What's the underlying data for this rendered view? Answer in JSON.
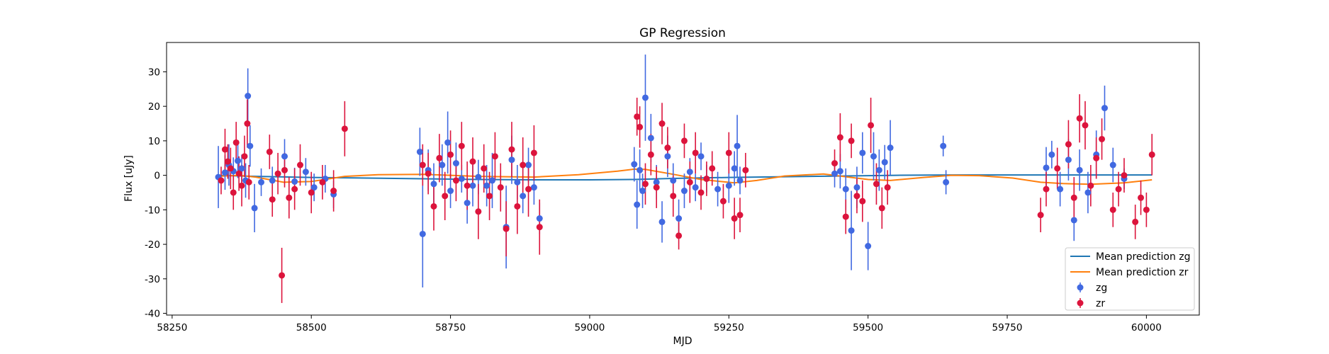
{
  "chart_data": {
    "type": "scatter",
    "title": "GP Regression",
    "xlabel": "MJD",
    "ylabel": "Flux [uJy]",
    "xlim": [
      58240,
      60095
    ],
    "ylim": [
      -40.5,
      38.5
    ],
    "xticks": [
      58250,
      58500,
      58750,
      59000,
      59250,
      59500,
      59750,
      60000
    ],
    "yticks": [
      -40,
      -30,
      -20,
      -10,
      0,
      10,
      20,
      30
    ],
    "grid": false,
    "legend": "lower-right",
    "legend_entries": [
      "Mean prediction zg",
      "Mean prediction zr",
      "zg",
      "zr"
    ],
    "colors": {
      "zg_points": "#4169e1",
      "zr_points": "#dc143c",
      "zg_line": "#1f77b4",
      "zr_line": "#ff7f0e"
    },
    "series": [
      {
        "name": "Mean prediction zg",
        "kind": "line",
        "x": [
          58330,
          58400,
          58500,
          58600,
          58700,
          58800,
          58900,
          59000,
          59080,
          59150,
          59250,
          59350,
          59450,
          59550,
          59650,
          59750,
          59850,
          59950,
          60010
        ],
        "y": [
          0.0,
          -0.3,
          -0.6,
          -0.8,
          -1.0,
          -1.2,
          -1.3,
          -1.3,
          -1.2,
          -0.9,
          -0.6,
          -0.4,
          -0.2,
          0.0,
          0.1,
          0.1,
          0.1,
          0.1,
          0.1
        ]
      },
      {
        "name": "Mean prediction zr",
        "kind": "line",
        "x": [
          58330,
          58370,
          58400,
          58450,
          58500,
          58560,
          58620,
          58700,
          58800,
          58900,
          58980,
          59050,
          59080,
          59100,
          59150,
          59200,
          59260,
          59300,
          59350,
          59420,
          59470,
          59500,
          59540,
          59600,
          59650,
          59700,
          59760,
          59810,
          59850,
          59900,
          59960,
          60010
        ],
        "y": [
          -0.3,
          0.0,
          -0.5,
          -2.0,
          -1.8,
          -0.3,
          0.2,
          0.3,
          -0.3,
          -0.5,
          0.2,
          1.2,
          1.8,
          1.7,
          0.3,
          -1.2,
          -2.2,
          -1.5,
          -0.2,
          0.4,
          -0.6,
          -1.2,
          -1.5,
          -0.6,
          0.0,
          -0.1,
          -0.8,
          -2.0,
          -2.4,
          -2.6,
          -2.2,
          -1.3
        ]
      },
      {
        "name": "zg",
        "kind": "errorbar",
        "x": [
          58333,
          58345,
          58352,
          58360,
          58368,
          58375,
          58382,
          58386,
          58390,
          58398,
          58410,
          58430,
          58452,
          58470,
          58490,
          58505,
          58525,
          58540,
          58695,
          58700,
          58710,
          58720,
          58735,
          58745,
          58750,
          58760,
          58770,
          58780,
          58790,
          58800,
          58815,
          58825,
          58850,
          58860,
          58870,
          58880,
          58890,
          58900,
          58910,
          59080,
          59085,
          59090,
          59095,
          59100,
          59110,
          59120,
          59130,
          59140,
          59150,
          59160,
          59170,
          59180,
          59190,
          59200,
          59210,
          59230,
          59250,
          59260,
          59265,
          59270,
          59440,
          59450,
          59460,
          59470,
          59480,
          59490,
          59500,
          59510,
          59520,
          59530,
          59540,
          59635,
          59640,
          59820,
          59830,
          59845,
          59860,
          59870,
          59880,
          59895,
          59910,
          59925,
          59940,
          59960
        ],
        "y": [
          -0.5,
          0.8,
          3.0,
          1.2,
          4.2,
          2.0,
          -1.5,
          23.0,
          8.5,
          -9.5,
          -2.0,
          -1.5,
          5.5,
          -1.8,
          1.0,
          -3.5,
          -1.0,
          -5.5,
          6.8,
          -17.0,
          1.5,
          -2.5,
          3.0,
          9.5,
          -4.5,
          3.5,
          -1.0,
          -8.0,
          -3.0,
          -0.5,
          -3.0,
          -1.5,
          -15.0,
          4.5,
          -2.0,
          -6.0,
          3.0,
          -3.5,
          -12.5,
          3.2,
          -8.5,
          1.5,
          -4.5,
          22.5,
          10.8,
          -2.0,
          -13.5,
          5.5,
          -1.5,
          -12.5,
          -4.5,
          1.0,
          -3.5,
          5.5,
          -1.0,
          -4.0,
          -3.0,
          2.0,
          8.5,
          -1.5,
          0.5,
          1.2,
          -4.0,
          -16.0,
          -3.5,
          6.5,
          -20.5,
          5.5,
          1.5,
          3.8,
          8.0,
          8.5,
          -2.0,
          2.2,
          6.0,
          -4.0,
          4.5,
          -13.0,
          1.5,
          -5.0,
          6.0,
          19.5,
          3.0,
          -1.0
        ],
        "err": [
          9.0,
          5.0,
          6.0,
          4.0,
          5.0,
          4.0,
          5.0,
          8.0,
          6.0,
          7.0,
          4.0,
          4.0,
          5.0,
          4.0,
          4.0,
          4.0,
          4.0,
          4.0,
          7.0,
          15.5,
          6.0,
          6.0,
          6.0,
          9.0,
          5.0,
          6.0,
          4.0,
          6.0,
          6.0,
          5.0,
          6.0,
          8.0,
          12.0,
          7.0,
          5.0,
          5.0,
          5.0,
          5.0,
          4.5,
          5.0,
          7.0,
          6.0,
          5.0,
          12.5,
          7.0,
          5.0,
          6.0,
          6.0,
          5.0,
          5.5,
          5.0,
          4.0,
          4.0,
          4.0,
          4.0,
          5.0,
          5.0,
          5.0,
          9.0,
          4.0,
          4.0,
          5.0,
          6.0,
          11.5,
          6.0,
          6.0,
          7.0,
          7.0,
          6.0,
          5.0,
          8.0,
          3.0,
          3.5,
          6.0,
          4.0,
          5.0,
          6.0,
          6.0,
          6.0,
          6.0,
          7.0,
          6.5,
          5.0,
          3.0
        ]
      },
      {
        "name": "zr",
        "kind": "errorbar",
        "x": [
          58338,
          58345,
          58350,
          58355,
          58360,
          58365,
          58370,
          58375,
          58380,
          58385,
          58388,
          58425,
          58430,
          58440,
          58447,
          58452,
          58460,
          58470,
          58480,
          58500,
          58520,
          58540,
          58560,
          58700,
          58710,
          58720,
          58730,
          58740,
          58750,
          58760,
          58770,
          58780,
          58790,
          58800,
          58810,
          58820,
          58830,
          58840,
          58850,
          58860,
          58870,
          58880,
          58890,
          58900,
          58910,
          59085,
          59090,
          59100,
          59110,
          59120,
          59130,
          59140,
          59150,
          59160,
          59170,
          59180,
          59190,
          59200,
          59210,
          59220,
          59240,
          59250,
          59260,
          59270,
          59280,
          59440,
          59450,
          59460,
          59470,
          59480,
          59490,
          59505,
          59515,
          59525,
          59535,
          59810,
          59820,
          59840,
          59860,
          59870,
          59880,
          59890,
          59900,
          59910,
          59920,
          59940,
          59950,
          59960,
          59980,
          59990,
          60000,
          60010
        ],
        "y": [
          -1.5,
          7.5,
          4.0,
          2.0,
          -5.0,
          9.5,
          0.5,
          -3.0,
          5.5,
          15.0,
          -2.0,
          6.8,
          -7.0,
          0.5,
          -29.0,
          1.5,
          -6.5,
          -4.0,
          3.0,
          -5.0,
          -2.0,
          -4.5,
          13.5,
          3.0,
          0.5,
          -9.0,
          5.0,
          -6.0,
          6.0,
          -1.5,
          8.5,
          -3.0,
          4.0,
          -10.5,
          2.0,
          -6.0,
          5.5,
          -3.5,
          -15.5,
          7.5,
          -9.0,
          3.0,
          -4.0,
          6.5,
          -15.0,
          17.0,
          14.0,
          -2.5,
          6.0,
          -3.5,
          15.0,
          8.0,
          -6.0,
          -17.5,
          10.0,
          -2.0,
          6.5,
          -5.0,
          -1.0,
          2.0,
          -7.5,
          6.5,
          -12.5,
          -11.5,
          1.5,
          3.5,
          11.0,
          -12.0,
          10.0,
          -6.0,
          -7.5,
          14.5,
          -2.5,
          -9.5,
          -3.5,
          -11.5,
          -4.0,
          2.0,
          9.0,
          -6.5,
          16.5,
          14.5,
          -3.0,
          5.0,
          10.5,
          -10.0,
          -4.0,
          0.0,
          -13.5,
          -6.5,
          -10.0,
          6.0
        ],
        "err": [
          4.0,
          6.0,
          5.0,
          6.0,
          5.0,
          6.0,
          5.0,
          6.0,
          6.0,
          7.0,
          5.0,
          5.0,
          5.0,
          6.0,
          8.0,
          5.0,
          6.0,
          6.0,
          6.0,
          6.0,
          5.0,
          6.0,
          8.0,
          6.0,
          6.0,
          7.0,
          7.0,
          7.0,
          7.0,
          6.0,
          7.0,
          7.0,
          7.0,
          8.0,
          7.0,
          7.0,
          7.0,
          7.0,
          8.0,
          8.0,
          8.0,
          8.0,
          8.0,
          8.0,
          8.0,
          5.5,
          6.0,
          6.0,
          6.0,
          6.0,
          6.0,
          6.0,
          6.0,
          4.0,
          5.0,
          6.0,
          6.0,
          5.0,
          5.0,
          5.0,
          5.0,
          6.0,
          6.0,
          5.0,
          5.0,
          4.0,
          7.0,
          5.0,
          5.0,
          5.0,
          6.0,
          8.0,
          6.0,
          6.0,
          5.0,
          5.0,
          5.0,
          6.0,
          7.0,
          6.0,
          7.0,
          7.0,
          6.0,
          6.0,
          6.0,
          5.0,
          5.0,
          5.0,
          5.0,
          5.0,
          5.0,
          6.0
        ]
      }
    ]
  }
}
